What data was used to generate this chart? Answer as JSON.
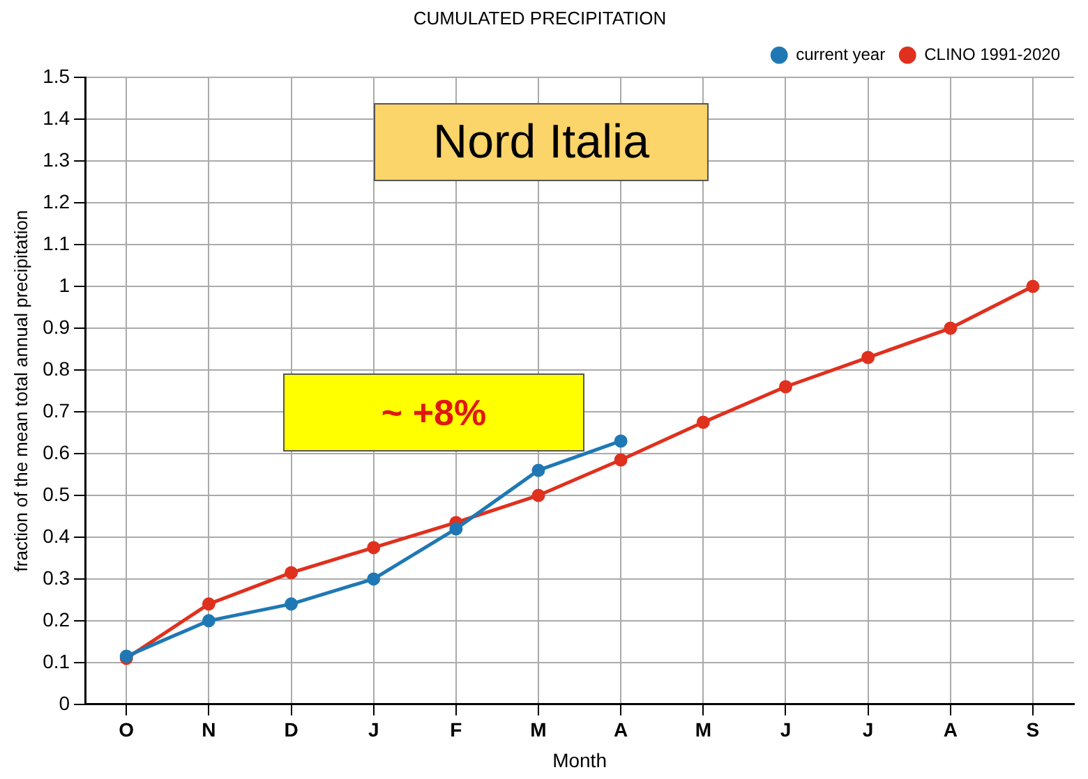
{
  "chart_data": {
    "type": "line",
    "title": "CUMULATED PRECIPITATION",
    "xlabel": "Month",
    "ylabel": "fraction of the mean total annual precipitation",
    "categories": [
      "O",
      "N",
      "D",
      "J",
      "F",
      "M",
      "A",
      "M",
      "J",
      "J",
      "A",
      "S"
    ],
    "series": [
      {
        "name": "CLINO 1991-2020",
        "color": "#e0301e",
        "values": [
          0.11,
          0.24,
          0.315,
          0.375,
          0.435,
          0.5,
          0.585,
          0.675,
          0.76,
          0.83,
          0.9,
          1.0
        ]
      },
      {
        "name": "current year",
        "color": "#1f78b4",
        "values": [
          0.115,
          0.2,
          0.24,
          0.3,
          0.42,
          0.56,
          0.63,
          null,
          null,
          null,
          null,
          null
        ]
      }
    ],
    "ylim": [
      0,
      1.5
    ],
    "yticks": [
      0,
      0.1,
      0.2,
      0.3,
      0.4,
      0.5,
      0.6,
      0.7,
      0.8,
      0.9,
      1,
      1.1,
      1.2,
      1.3,
      1.4,
      1.5
    ],
    "grid": true,
    "legend": "top right",
    "marker": "circle",
    "line_style": "solid",
    "annotations": [
      "Nord Italia",
      "~ +8%"
    ]
  }
}
